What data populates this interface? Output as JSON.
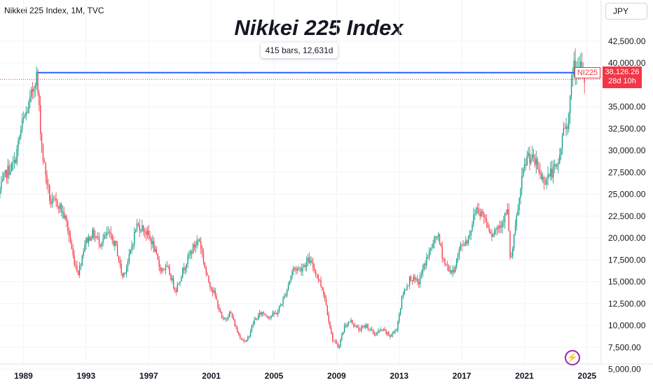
{
  "header": {
    "symbol_label": "Nikkei 225 Index, 1M, TVC",
    "currency": "JPY"
  },
  "measure_label": "415 bars, 12,631d",
  "price_badge": {
    "ticker": "NI225",
    "price": "38,126.26",
    "countdown": "28d 10h"
  },
  "colors": {
    "up": "#089981",
    "down": "#f23645",
    "measure_line": "#2962ff",
    "price_line": "#f23645"
  },
  "chart_data": {
    "type": "candlestick",
    "title": "Nikkei 225 Index",
    "xlim": [
      1987.5,
      2025.9
    ],
    "ylim": [
      4000,
      44800
    ],
    "x_ticks": [
      1989,
      1993,
      1997,
      2001,
      2005,
      2009,
      2013,
      2017,
      2021,
      2025
    ],
    "y_ticks": [
      5000,
      7500,
      10000,
      12500,
      15000,
      17500,
      20000,
      22500,
      25000,
      27500,
      30000,
      32500,
      35000,
      37500,
      40000,
      42500
    ],
    "y_tick_labels": [
      "5,000.00",
      "7,500.00",
      "10,000.00",
      "12,500.00",
      "15,000.00",
      "17,500.00",
      "20,000.00",
      "22,500.00",
      "25,000.00",
      "27,500.00",
      "30,000.00",
      "32,500.00",
      "35,000.00",
      "",
      "40,000.00",
      "42,500.00"
    ],
    "last_price": 38126.26,
    "measure": {
      "x_start": 1989.9,
      "x_end": 2024.3,
      "y": 38900
    },
    "series": [
      {
        "x": [
          1987.5,
          1988.0,
          1988.5,
          1989.0,
          1989.5,
          1989.9,
          1990.3,
          1990.8,
          1991.3,
          1991.8,
          1992.3,
          1992.6,
          1993.0,
          1993.5,
          1994.0,
          1994.5,
          1995.0,
          1995.4,
          1995.8,
          1996.3,
          1996.8,
          1997.3,
          1997.8,
          1998.3,
          1998.8,
          1999.3,
          1999.8,
          2000.3,
          2000.8,
          2001.3,
          2001.8,
          2002.3,
          2002.8,
          2003.3,
          2003.8,
          2004.3,
          2004.8,
          2005.3,
          2005.8,
          2006.3,
          2006.8,
          2007.3,
          2007.8,
          2008.3,
          2008.8,
          2009.2,
          2009.6,
          2010.0,
          2010.5,
          2011.0,
          2011.5,
          2012.0,
          2012.5,
          2012.9,
          2013.3,
          2013.8,
          2014.3,
          2014.8,
          2015.3,
          2015.5,
          2016.0,
          2016.5,
          2017.0,
          2017.5,
          2018.0,
          2018.5,
          2019.0,
          2019.5,
          2020.0,
          2020.2,
          2020.6,
          2021.0,
          2021.3,
          2021.8,
          2022.3,
          2022.8,
          2023.2,
          2023.6,
          2023.9,
          2024.2,
          2024.5,
          2024.7,
          2024.9
        ],
        "y": [
          25000,
          27500,
          28500,
          33000,
          35500,
          38900,
          29500,
          24000,
          24000,
          22000,
          17500,
          16000,
          19500,
          20500,
          19500,
          20500,
          19000,
          15500,
          17500,
          21500,
          21000,
          19500,
          16500,
          16500,
          14000,
          16500,
          18500,
          20000,
          15500,
          13500,
          10500,
          11500,
          9000,
          8000,
          10500,
          11500,
          11000,
          11500,
          13500,
          16500,
          16500,
          17500,
          16000,
          13500,
          8500,
          7500,
          10000,
          10500,
          9500,
          10000,
          9000,
          9500,
          8800,
          9500,
          13500,
          15500,
          14800,
          17500,
          19500,
          20500,
          17000,
          16000,
          19000,
          20000,
          23500,
          22500,
          20500,
          21500,
          23000,
          17000,
          22500,
          27500,
          29500,
          28500,
          26500,
          27500,
          28000,
          32500,
          33500,
          40000,
          38500,
          39500,
          38126
        ]
      }
    ]
  }
}
